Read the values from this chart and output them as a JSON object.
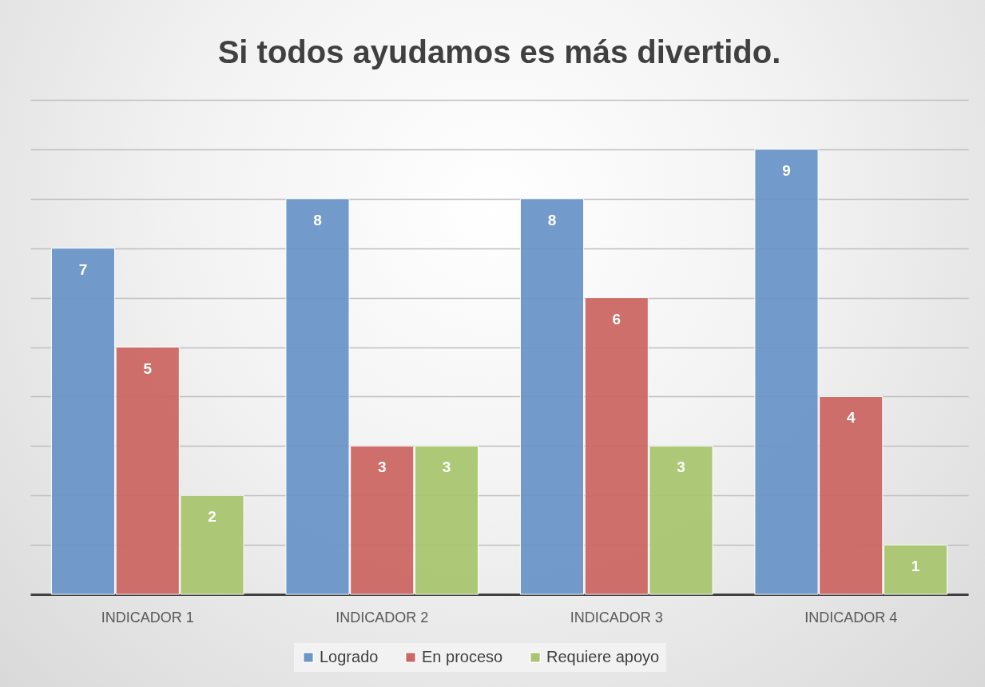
{
  "chart_data": {
    "type": "bar",
    "title": "Si todos ayudamos es más divertido.",
    "categories": [
      "INDICADOR 1",
      "INDICADOR 2",
      "INDICADOR 3",
      "INDICADOR 4"
    ],
    "series": [
      {
        "name": "Logrado",
        "color": "#6a96c8",
        "values": [
          7,
          8,
          8,
          9
        ]
      },
      {
        "name": "En proceso",
        "color": "#cb6764",
        "values": [
          5,
          3,
          6,
          4
        ]
      },
      {
        "name": "Requiere apoyo",
        "color": "#a9c56f",
        "values": [
          2,
          3,
          3,
          1
        ]
      }
    ],
    "ylim": [
      0,
      10
    ],
    "yticks": [
      {
        "value": 0,
        "label": null
      },
      {
        "value": 1,
        "label": null
      },
      {
        "value": 2,
        "label": null
      },
      {
        "value": 3,
        "label": null
      },
      {
        "value": 4,
        "label": null
      },
      {
        "value": 5,
        "label": null
      },
      {
        "value": 6,
        "label": null
      },
      {
        "value": 7,
        "label": null
      },
      {
        "value": 8,
        "label": null
      },
      {
        "value": 9,
        "label": null
      },
      {
        "value": 10,
        "label": null
      }
    ],
    "tick_labels": "x",
    "grid": "y",
    "legend": "bottom",
    "data_labels": true
  }
}
